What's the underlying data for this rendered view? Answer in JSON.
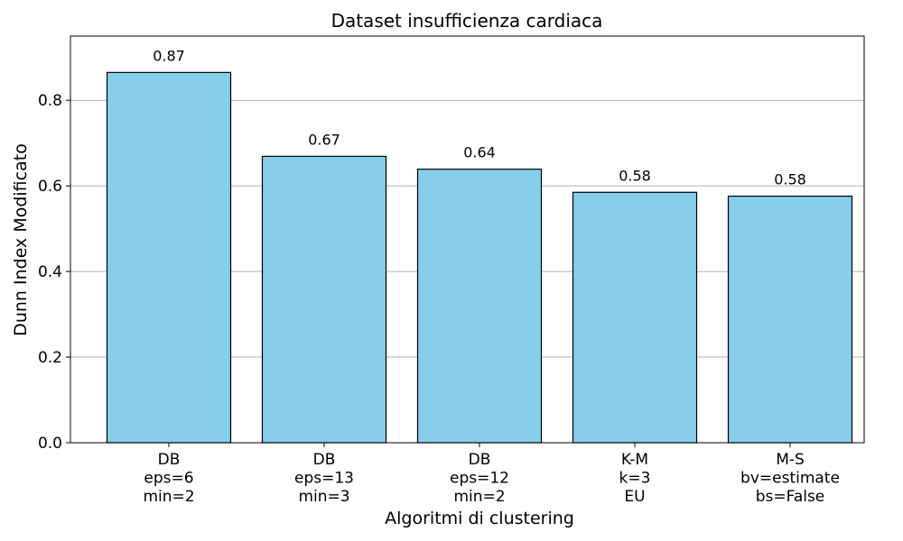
{
  "chart_data": {
    "type": "bar",
    "title": "Dataset insufficienza cardiaca",
    "xlabel": "Algoritmi di clustering",
    "ylabel": "Dunn Index Modificato",
    "categories": [
      [
        "DB",
        "eps=6",
        "min=2"
      ],
      [
        "DB",
        "eps=13",
        "min=3"
      ],
      [
        "DB",
        "eps=12",
        "min=2"
      ],
      [
        "K-M",
        "k=3",
        "EU"
      ],
      [
        "M-S",
        "bv=estimate",
        "bs=False"
      ]
    ],
    "values": [
      0.865,
      0.669,
      0.639,
      0.585,
      0.576
    ],
    "value_labels": [
      "0.87",
      "0.67",
      "0.64",
      "0.58",
      "0.58"
    ],
    "ylim": [
      0,
      0.95
    ],
    "yticks": [
      0.0,
      0.2,
      0.4,
      0.6,
      0.8
    ],
    "ytick_labels": [
      "0.0",
      "0.2",
      "0.4",
      "0.6",
      "0.8"
    ],
    "grid": "horizontal",
    "colors": {
      "bar_fill": "#87CEEB",
      "bar_edge": "#000000",
      "grid": "#b0b0b0"
    }
  }
}
